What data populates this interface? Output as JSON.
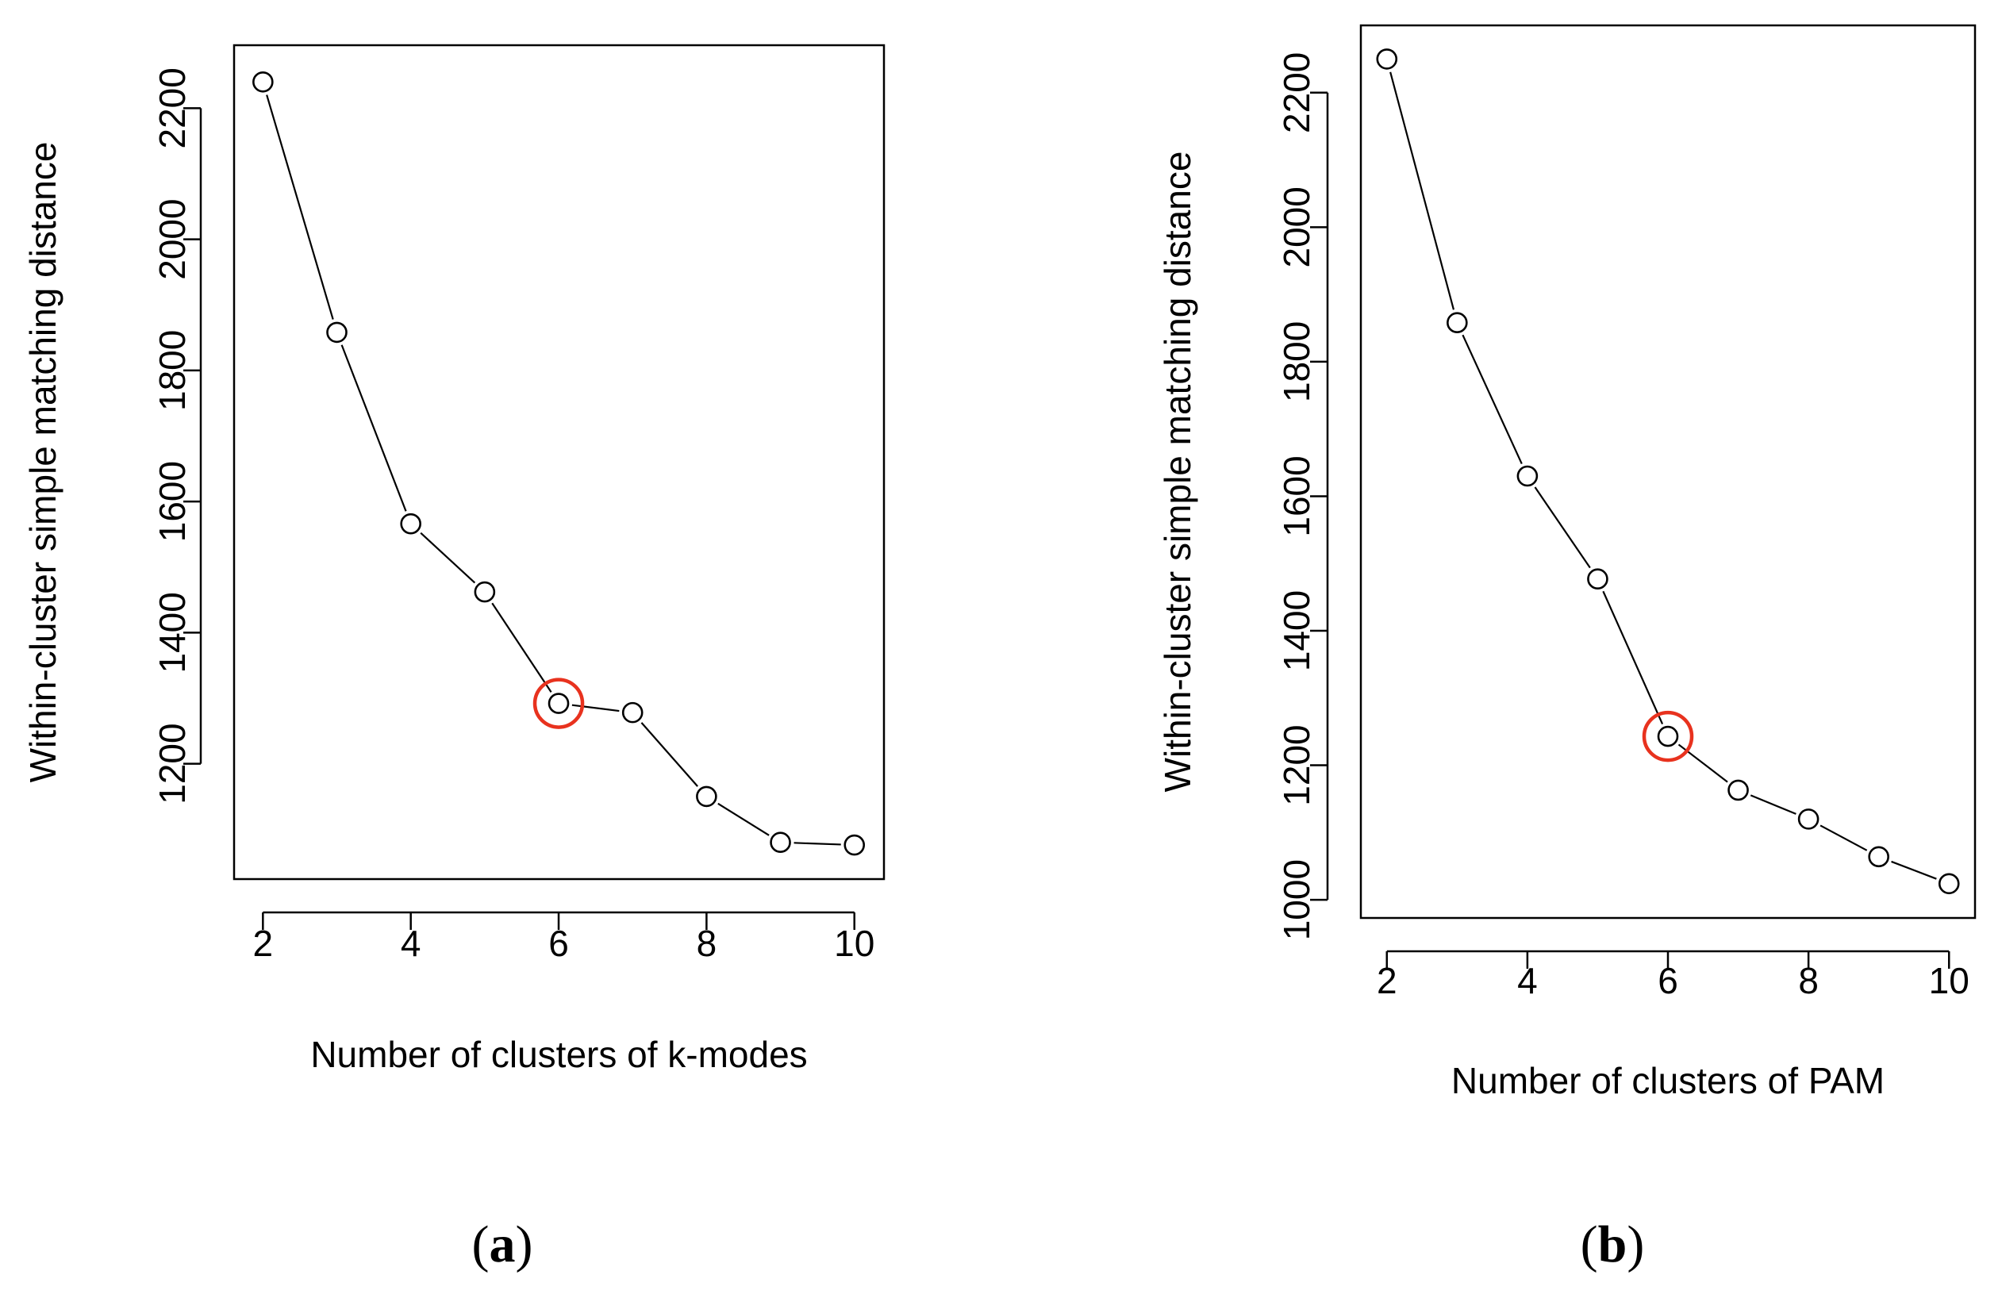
{
  "chart_data": [
    {
      "type": "line",
      "panel_label": "a",
      "xlabel": "Number of clusters of k-modes",
      "ylabel": "Within-cluster simple matching distance",
      "x": [
        2,
        3,
        4,
        5,
        6,
        7,
        8,
        9,
        10
      ],
      "y": [
        2240,
        1858,
        1566,
        1462,
        1292,
        1278,
        1150,
        1080,
        1076
      ],
      "x_ticks": [
        2,
        4,
        6,
        8,
        10
      ],
      "y_ticks": [
        1200,
        1400,
        1600,
        1800,
        2000,
        2200
      ],
      "xlim": [
        1.61,
        10.4
      ],
      "ylim": [
        1024,
        2296
      ],
      "highlight_x": 6,
      "highlight_color": "#e8321e",
      "grid": false,
      "legend": "none"
    },
    {
      "type": "line",
      "panel_label": "b",
      "xlabel": "Number of clusters of PAM",
      "ylabel": "Within-cluster simple matching distance",
      "x": [
        2,
        3,
        4,
        5,
        6,
        7,
        8,
        9,
        10
      ],
      "y": [
        2250,
        1858,
        1630,
        1477,
        1243,
        1163,
        1120,
        1064,
        1024
      ],
      "x_ticks": [
        2,
        4,
        6,
        8,
        10
      ],
      "y_ticks": [
        1000,
        1200,
        1400,
        1600,
        1800,
        2000,
        2200
      ],
      "xlim": [
        1.63,
        10.37
      ],
      "ylim": [
        973,
        2300
      ],
      "highlight_x": 6,
      "highlight_color": "#e8321e",
      "grid": false,
      "legend": "none"
    }
  ]
}
